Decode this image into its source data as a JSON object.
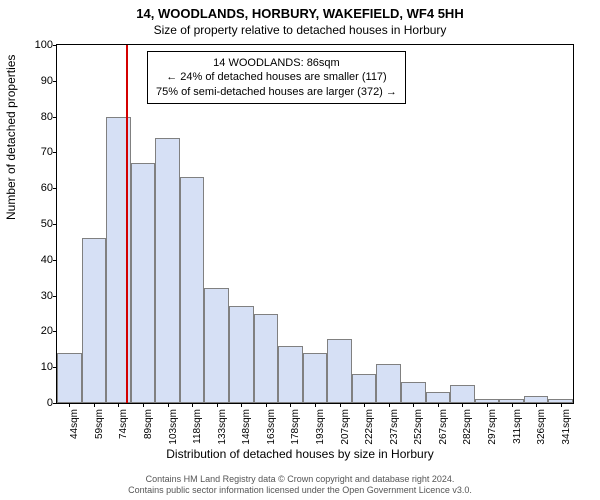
{
  "title_main": "14, WOODLANDS, HORBURY, WAKEFIELD, WF4 5HH",
  "title_sub": "Size of property relative to detached houses in Horbury",
  "ylabel": "Number of detached properties",
  "xlabel": "Distribution of detached houses by size in Horbury",
  "chart": {
    "type": "histogram",
    "ylim": [
      0,
      100
    ],
    "yticks": [
      0,
      10,
      20,
      30,
      40,
      50,
      60,
      70,
      80,
      90,
      100
    ],
    "x_categories": [
      "44sqm",
      "59sqm",
      "74sqm",
      "89sqm",
      "103sqm",
      "118sqm",
      "133sqm",
      "148sqm",
      "163sqm",
      "178sqm",
      "193sqm",
      "207sqm",
      "222sqm",
      "237sqm",
      "252sqm",
      "267sqm",
      "282sqm",
      "297sqm",
      "311sqm",
      "326sqm",
      "341sqm"
    ],
    "values": [
      14,
      46,
      80,
      67,
      74,
      63,
      32,
      27,
      25,
      16,
      14,
      18,
      8,
      11,
      6,
      3,
      5,
      1,
      1,
      2,
      1
    ],
    "bar_fill": "#d6e0f5",
    "bar_border": "#808080",
    "background_color": "#ffffff",
    "marker": {
      "bin_index": 2.8,
      "color": "#d40000"
    }
  },
  "infobox": {
    "line1": "14 WOODLANDS: 86sqm",
    "line2": "← 24% of detached houses are smaller (117)",
    "line3": "75% of semi-detached houses are larger (372) →"
  },
  "footer_line1": "Contains HM Land Registry data © Crown copyright and database right 2024.",
  "footer_line2": "Contains public sector information licensed under the Open Government Licence v3.0."
}
